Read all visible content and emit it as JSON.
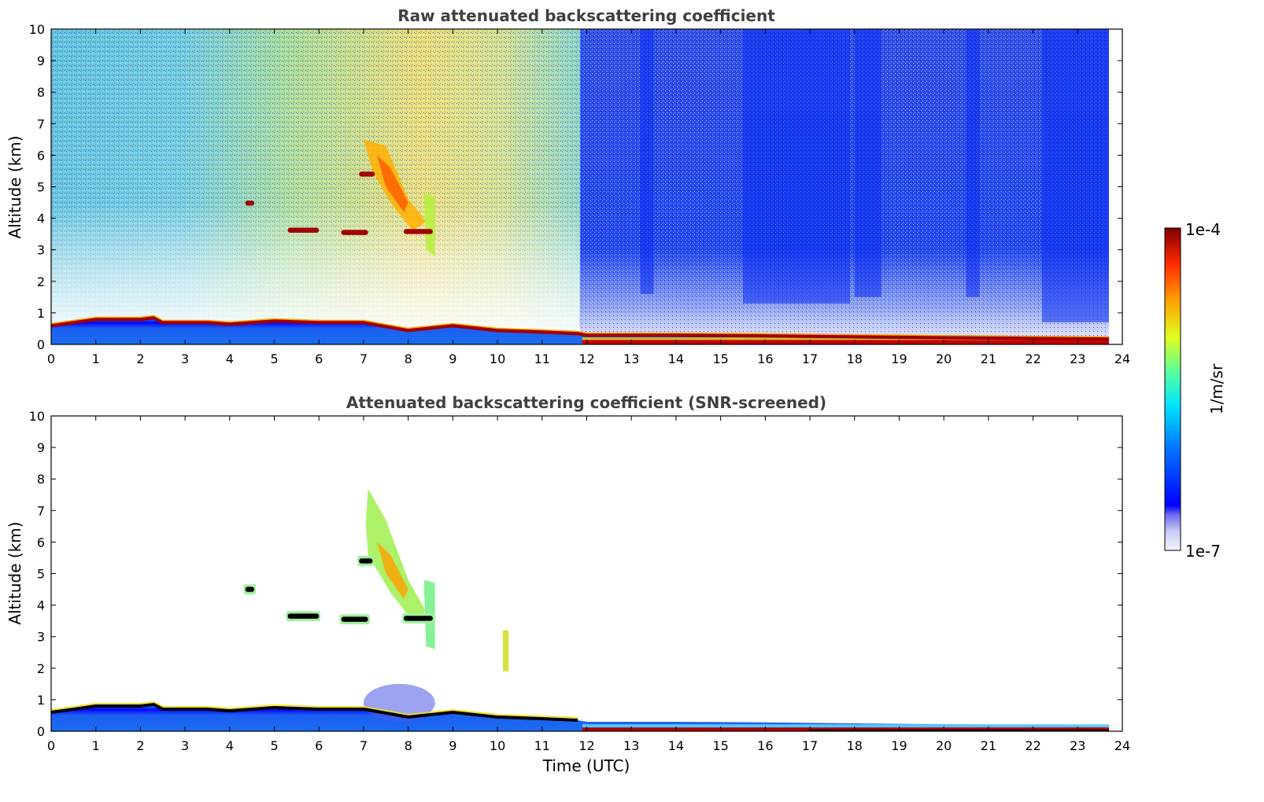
{
  "chart_data": [
    {
      "type": "heatmap",
      "title": "Raw attenuated backscattering coefficient",
      "xlabel": "",
      "ylabel": "Altitude (km)",
      "xlim": [
        0,
        24
      ],
      "ylim": [
        0,
        10
      ],
      "xticks": [
        "0",
        "1",
        "2",
        "3",
        "4",
        "5",
        "6",
        "7",
        "8",
        "9",
        "10",
        "11",
        "12",
        "13",
        "14",
        "15",
        "16",
        "17",
        "18",
        "19",
        "20",
        "21",
        "22",
        "23",
        "24"
      ],
      "yticks": [
        "0",
        "1",
        "2",
        "3",
        "4",
        "5",
        "6",
        "7",
        "8",
        "9",
        "10"
      ],
      "data_end_time": 23.7,
      "boundary_layer_top_km": [
        [
          0,
          0.6
        ],
        [
          0.5,
          0.7
        ],
        [
          1,
          0.8
        ],
        [
          2,
          0.8
        ],
        [
          2.3,
          0.85
        ],
        [
          2.5,
          0.7
        ],
        [
          3.5,
          0.7
        ],
        [
          4,
          0.65
        ],
        [
          5,
          0.75
        ],
        [
          6,
          0.7
        ],
        [
          7,
          0.7
        ],
        [
          8,
          0.45
        ],
        [
          9,
          0.6
        ],
        [
          10,
          0.45
        ],
        [
          11,
          0.4
        ],
        [
          11.8,
          0.35
        ],
        [
          12,
          0.3
        ],
        [
          14,
          0.3
        ],
        [
          16,
          0.28
        ],
        [
          18,
          0.25
        ],
        [
          20,
          0.22
        ],
        [
          22,
          0.2
        ],
        [
          23.7,
          0.18
        ]
      ],
      "features": [
        {
          "name": "background_noise_day",
          "x_range": [
            0,
            11.85
          ],
          "z_range": [
            2,
            10
          ],
          "level": "green-yellow"
        },
        {
          "name": "background_noise_night",
          "x_range": [
            11.85,
            23.7
          ],
          "z_range": [
            1.2,
            10
          ],
          "level": "blue"
        },
        {
          "name": "cirrus_fall_streak",
          "x_range": [
            7.0,
            8.6
          ],
          "z_range": [
            2.8,
            6.5
          ],
          "level": "orange"
        },
        {
          "name": "mid_level_layer",
          "x_range": [
            5.3,
            8.6
          ],
          "z_range": [
            3.5,
            3.8
          ],
          "level": "dark red"
        },
        {
          "name": "small_layer",
          "x_range": [
            4.3,
            4.6
          ],
          "z_range": [
            4.4,
            4.6
          ],
          "level": "dark red"
        }
      ]
    },
    {
      "type": "heatmap",
      "title": "Attenuated backscattering coefficient (SNR-screened)",
      "xlabel": "Time (UTC)",
      "ylabel": "Altitude (km)",
      "xlim": [
        0,
        24
      ],
      "ylim": [
        0,
        10
      ],
      "xticks": [
        "0",
        "1",
        "2",
        "3",
        "4",
        "5",
        "6",
        "7",
        "8",
        "9",
        "10",
        "11",
        "12",
        "13",
        "14",
        "15",
        "16",
        "17",
        "18",
        "19",
        "20",
        "21",
        "22",
        "23",
        "24"
      ],
      "yticks": [
        "0",
        "1",
        "2",
        "3",
        "4",
        "5",
        "6",
        "7",
        "8",
        "9",
        "10"
      ],
      "data_end_time": 23.7,
      "features": [
        {
          "name": "cirrus_fall_streak",
          "x_range": [
            7.0,
            8.6
          ],
          "z_range": [
            2.6,
            7.7
          ],
          "level": "green-orange"
        },
        {
          "name": "mid_level_layer",
          "x_range": [
            5.3,
            8.6
          ],
          "z_range": [
            3.5,
            3.8
          ],
          "level": "black"
        },
        {
          "name": "small_layer",
          "x_range": [
            4.2,
            4.6
          ],
          "z_range": [
            4.4,
            4.7
          ],
          "level": "black"
        },
        {
          "name": "isolated_echo",
          "x_range": [
            10.1,
            10.3
          ],
          "z_range": [
            1.9,
            3.2
          ],
          "level": "yellow"
        }
      ]
    }
  ],
  "colorbar": {
    "max_label": "1e-4",
    "min_label": "1e-7",
    "unit": "1/m/sr",
    "colormap": "jet"
  }
}
